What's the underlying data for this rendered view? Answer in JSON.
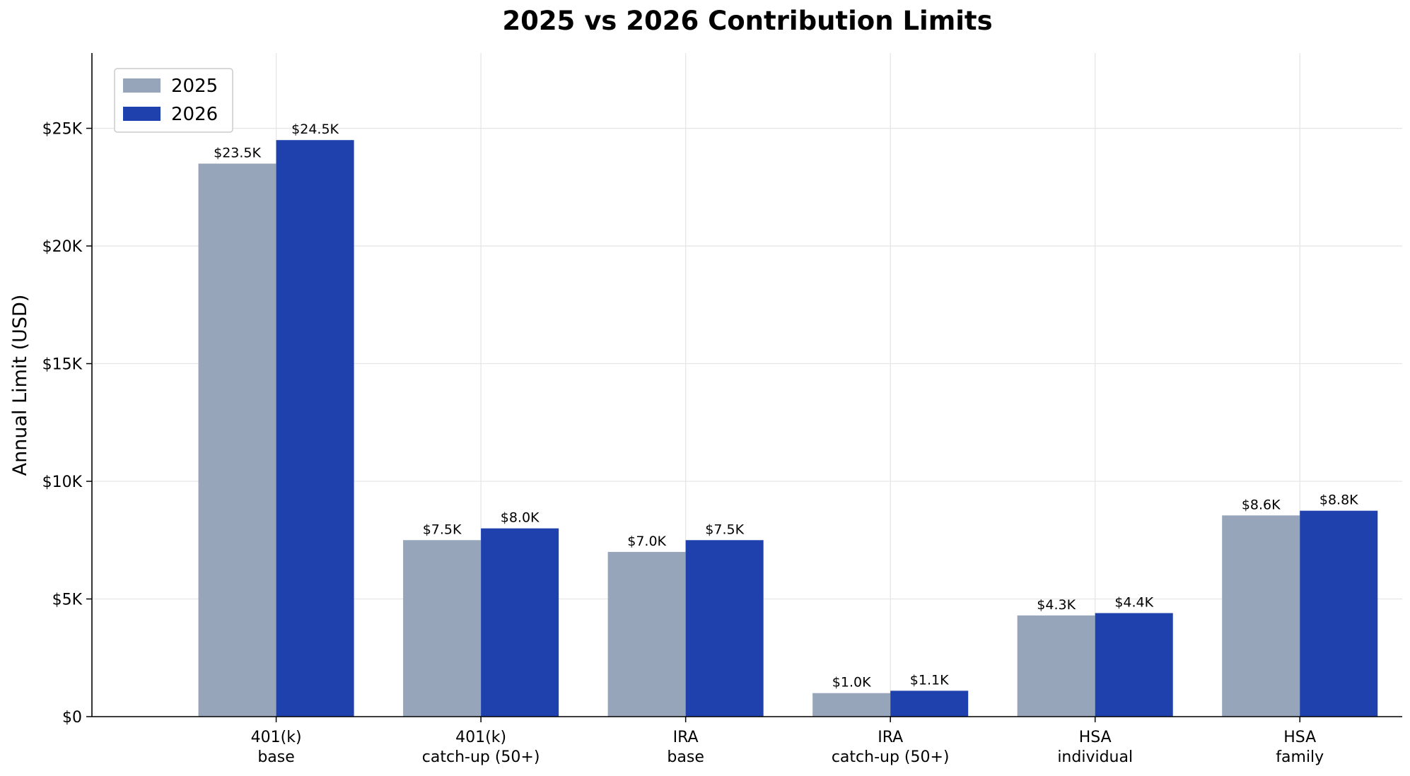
{
  "chart_data": {
    "type": "bar",
    "title": "2025 vs 2026 Contribution Limits",
    "xlabel": "",
    "ylabel": "Annual Limit (USD)",
    "categories": [
      [
        "401(k)",
        "base"
      ],
      [
        "401(k)",
        "catch-up (50+)"
      ],
      [
        "IRA",
        "base"
      ],
      [
        "IRA",
        "catch-up (50+)"
      ],
      [
        "HSA",
        "individual"
      ],
      [
        "HSA",
        "family"
      ]
    ],
    "series": [
      {
        "name": "2025",
        "color": "#96a5b9",
        "values": [
          23500,
          7500,
          7000,
          1000,
          4300,
          8550
        ],
        "labels": [
          "$23.5K",
          "$7.5K",
          "$7.0K",
          "$1.0K",
          "$4.3K",
          "$8.6K"
        ]
      },
      {
        "name": "2026",
        "color": "#1f41ae",
        "values": [
          24500,
          8000,
          7500,
          1100,
          4400,
          8750
        ],
        "labels": [
          "$24.5K",
          "$8.0K",
          "$7.5K",
          "$1.1K",
          "$4.4K",
          "$8.8K"
        ]
      }
    ],
    "ylim": [
      0,
      28200
    ],
    "yticks": [
      0,
      5000,
      10000,
      15000,
      20000,
      25000
    ],
    "ytick_labels": [
      "$0",
      "$5K",
      "$10K",
      "$15K",
      "$20K",
      "$25K"
    ],
    "grid": true,
    "legend_position": "top-left",
    "colors": {
      "grid": "#e6e6e6",
      "axis": "#000000",
      "legend_border": "#cccccc"
    }
  }
}
